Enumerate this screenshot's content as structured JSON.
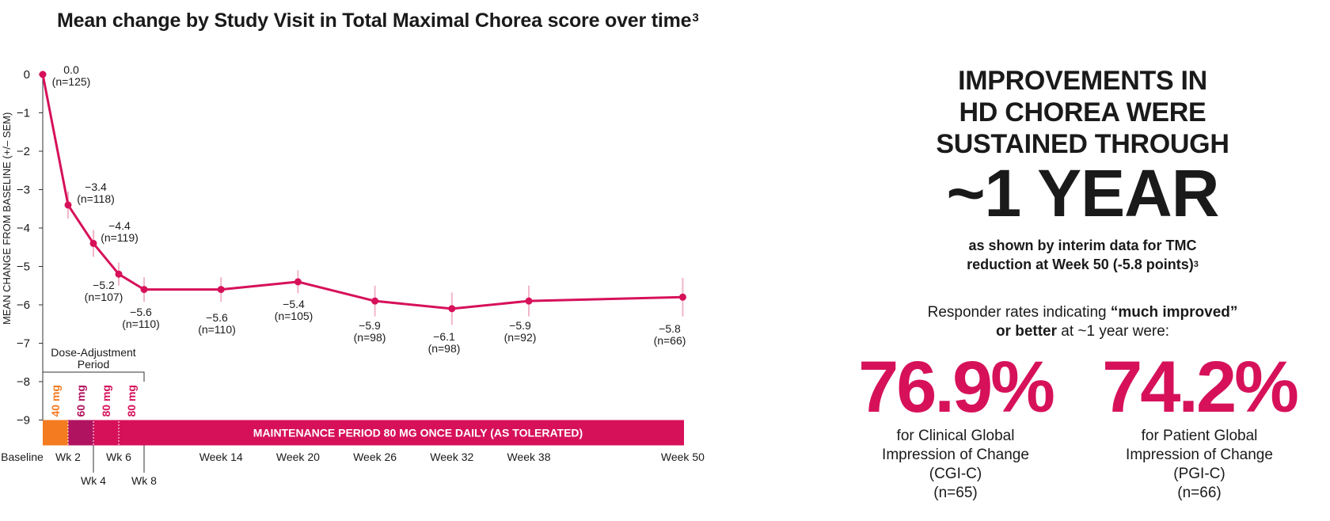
{
  "title": "Mean change by Study Visit in Total Maximal Chorea score over time",
  "title_ref": "3",
  "chart_data": {
    "type": "line",
    "ylabel": "MEAN CHANGE FROM BASELINE (+/– SEM)",
    "ylim": [
      -9,
      0
    ],
    "yticks": [
      0,
      -1,
      -2,
      -3,
      -4,
      -5,
      -6,
      -7,
      -8,
      -9
    ],
    "ytick_labels": [
      "0",
      "−1",
      "−2",
      "−3",
      "−4",
      "−5",
      "−6",
      "−7",
      "−8",
      "−9"
    ],
    "grid": false,
    "series_color": "#d6115a",
    "error_bar_color": "#f2b6c8",
    "x_weeks": [
      0,
      2,
      4,
      6,
      8,
      14,
      20,
      26,
      32,
      38,
      50
    ],
    "values": [
      0.0,
      -3.4,
      -4.4,
      -5.2,
      -5.6,
      -5.6,
      -5.4,
      -5.9,
      -6.1,
      -5.9,
      -5.8
    ],
    "sem": [
      0,
      0.35,
      0.35,
      0.3,
      0.32,
      0.32,
      0.3,
      0.4,
      0.42,
      0.4,
      0.5
    ],
    "value_labels": [
      "0.0",
      "−3.4",
      "−4.4",
      "−5.2",
      "−5.6",
      "−5.6",
      "−5.4",
      "−5.9",
      "−6.1",
      "−5.9",
      "−5.8"
    ],
    "n_labels": [
      "(n=125)",
      "(n=118)",
      "(n=119)",
      "(n=107)",
      "(n=110)",
      "(n=110)",
      "(n=105)",
      "(n=98)",
      "(n=98)",
      "(n=92)",
      "(n=66)"
    ],
    "xtick_labels": [
      {
        "week": 0,
        "text": "Baseline",
        "row": 1
      },
      {
        "week": 2,
        "text": "Wk 2",
        "row": 1
      },
      {
        "week": 4,
        "text": "Wk 4",
        "row": 2
      },
      {
        "week": 6,
        "text": "Wk 6",
        "row": 1
      },
      {
        "week": 8,
        "text": "Wk 8",
        "row": 2
      },
      {
        "week": 14,
        "text": "Week 14",
        "row": 1
      },
      {
        "week": 20,
        "text": "Week 20",
        "row": 1
      },
      {
        "week": 26,
        "text": "Week 26",
        "row": 1
      },
      {
        "week": 32,
        "text": "Week 32",
        "row": 1
      },
      {
        "week": 38,
        "text": "Week 38",
        "row": 1
      },
      {
        "week": 50,
        "text": "Week 50",
        "row": 1
      }
    ],
    "dose_period_label_line1": "Dose-Adjustment",
    "dose_period_label_line2": "Period",
    "doses": [
      {
        "from_week": 0,
        "to_week": 2,
        "label": "40 mg",
        "color": "#f47b20"
      },
      {
        "from_week": 2,
        "to_week": 4,
        "label": "60 mg",
        "color": "#b0135f"
      },
      {
        "from_week": 4,
        "to_week": 6,
        "label": "80 mg",
        "color": "#d6115a"
      },
      {
        "from_week": 6,
        "to_week": 8,
        "label": "80 mg",
        "color": "#d6115a"
      }
    ],
    "maintenance_label": "MAINTENANCE PERIOD 80 MG ONCE DAILY (AS TOLERATED)",
    "maintenance_color": "#d6115a"
  },
  "right_panel": {
    "headline_line1": "IMPROVEMENTS IN",
    "headline_line2": "HD CHOREA WERE",
    "headline_line3": "SUSTAINED THROUGH",
    "big_text": "~1 YEAR",
    "sub_line1": "as shown by interim data for TMC",
    "sub_line2": "reduction at Week 50 (-5.8 points)",
    "sub_ref": "3",
    "responder_pre": "Responder rates indicating ",
    "responder_bold1": "“much improved”",
    "responder_bold2": "or better",
    "responder_post": " at ~1 year were:",
    "stats": [
      {
        "value": "76.9%",
        "line1": "for Clinical Global",
        "line2": "Impression of Change",
        "line3": "(CGI-C)",
        "n": "(n=65)"
      },
      {
        "value": "74.2%",
        "line1": "for Patient Global",
        "line2": "Impression of Change",
        "line3": "(PGI-C)",
        "n": "(n=66)"
      }
    ],
    "accent_color": "#d6115a"
  }
}
